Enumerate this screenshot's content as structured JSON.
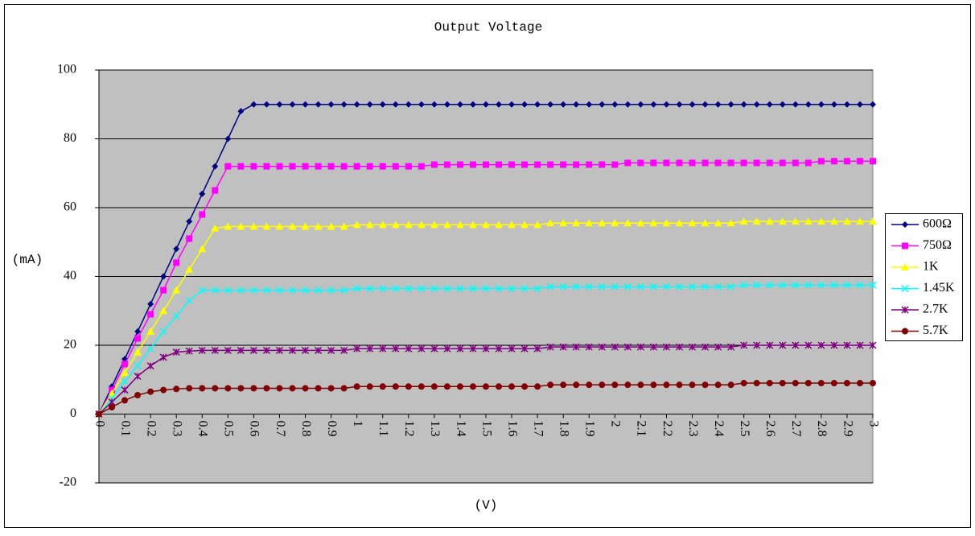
{
  "chart_data": {
    "type": "line",
    "title": "Output Voltage",
    "x_label": "(V)",
    "y_label": "(mA)",
    "xlim": [
      0,
      3
    ],
    "xticks": [
      0,
      0.1,
      0.2,
      0.3,
      0.4,
      0.5,
      0.6,
      0.7,
      0.8,
      0.9,
      1,
      1.1,
      1.2,
      1.3,
      1.4,
      1.5,
      1.6,
      1.7,
      1.8,
      1.9,
      2,
      2.1,
      2.2,
      2.3,
      2.4,
      2.5,
      2.6,
      2.7,
      2.8,
      2.9,
      3
    ],
    "ylim": [
      -20,
      100
    ],
    "yticks": [
      -20,
      0,
      20,
      40,
      60,
      80,
      100
    ],
    "grid": true,
    "legend": "right",
    "x": [
      0,
      0.05,
      0.1,
      0.15,
      0.2,
      0.25,
      0.3,
      0.35,
      0.4,
      0.45,
      0.5,
      0.55,
      0.6,
      0.65,
      0.7,
      0.75,
      0.8,
      0.85,
      0.9,
      0.95,
      1,
      1.05,
      1.1,
      1.15,
      1.2,
      1.25,
      1.3,
      1.35,
      1.4,
      1.45,
      1.5,
      1.55,
      1.6,
      1.65,
      1.7,
      1.75,
      1.8,
      1.85,
      1.9,
      1.95,
      2,
      2.05,
      2.1,
      2.15,
      2.2,
      2.25,
      2.3,
      2.35,
      2.4,
      2.45,
      2.5,
      2.55,
      2.6,
      2.65,
      2.7,
      2.75,
      2.8,
      2.85,
      2.9,
      2.95,
      3
    ],
    "series": [
      {
        "name": "600Ω",
        "color": "#000080",
        "marker": "diamond",
        "values": [
          0,
          8,
          16,
          24,
          32,
          40,
          48,
          56,
          64,
          72,
          80,
          88,
          90,
          90,
          90,
          90,
          90,
          90,
          90,
          90,
          90,
          90,
          90,
          90,
          90,
          90,
          90,
          90,
          90,
          90,
          90,
          90,
          90,
          90,
          90,
          90,
          90,
          90,
          90,
          90,
          90,
          90,
          90,
          90,
          90,
          90,
          90,
          90,
          90,
          90,
          90,
          90,
          90,
          90,
          90,
          90,
          90,
          90,
          90,
          90,
          90
        ]
      },
      {
        "name": "750Ω",
        "color": "#ff00ff",
        "marker": "square",
        "values": [
          0,
          7,
          14.5,
          22,
          29,
          36,
          44,
          51,
          58,
          65,
          72,
          72,
          72,
          72,
          72,
          72,
          72,
          72,
          72,
          72,
          72,
          72,
          72,
          72,
          72,
          72,
          72.5,
          72.5,
          72.5,
          72.5,
          72.5,
          72.5,
          72.5,
          72.5,
          72.5,
          72.5,
          72.5,
          72.5,
          72.5,
          72.5,
          72.5,
          73,
          73,
          73,
          73,
          73,
          73,
          73,
          73,
          73,
          73,
          73,
          73,
          73,
          73,
          73,
          73.5,
          73.5,
          73.5,
          73.5,
          73.5
        ]
      },
      {
        "name": "1K",
        "color": "#ffff00",
        "marker": "triangle",
        "values": [
          0,
          6,
          12,
          18,
          24,
          30,
          36,
          42,
          48,
          54,
          54.5,
          54.5,
          54.5,
          54.5,
          54.5,
          54.5,
          54.5,
          54.5,
          54.5,
          54.5,
          55,
          55,
          55,
          55,
          55,
          55,
          55,
          55,
          55,
          55,
          55,
          55,
          55,
          55,
          55,
          55.5,
          55.5,
          55.5,
          55.5,
          55.5,
          55.5,
          55.5,
          55.5,
          55.5,
          55.5,
          55.5,
          55.5,
          55.5,
          55.5,
          55.5,
          56,
          56,
          56,
          56,
          56,
          56,
          56,
          56,
          56,
          56,
          56
        ]
      },
      {
        "name": "1.45K",
        "color": "#00ffff",
        "marker": "x",
        "values": [
          0,
          4.5,
          9.5,
          14,
          19,
          24,
          28.5,
          33,
          36,
          36,
          36,
          36,
          36,
          36,
          36,
          36,
          36,
          36,
          36,
          36,
          36.5,
          36.5,
          36.5,
          36.5,
          36.5,
          36.5,
          36.5,
          36.5,
          36.5,
          36.5,
          36.5,
          36.5,
          36.5,
          36.5,
          36.5,
          37,
          37,
          37,
          37,
          37,
          37,
          37,
          37,
          37,
          37,
          37,
          37,
          37,
          37,
          37,
          37.5,
          37.5,
          37.5,
          37.5,
          37.5,
          37.5,
          37.5,
          37.5,
          37.5,
          37.5,
          37.5
        ]
      },
      {
        "name": "2.7K",
        "color": "#800080",
        "marker": "star",
        "values": [
          0,
          3.5,
          7,
          11,
          14,
          16.5,
          18,
          18.3,
          18.5,
          18.5,
          18.5,
          18.5,
          18.5,
          18.5,
          18.5,
          18.5,
          18.5,
          18.5,
          18.5,
          18.5,
          19,
          19,
          19,
          19,
          19,
          19,
          19,
          19,
          19,
          19,
          19,
          19,
          19,
          19,
          19,
          19.5,
          19.5,
          19.5,
          19.5,
          19.5,
          19.5,
          19.5,
          19.5,
          19.5,
          19.5,
          19.5,
          19.5,
          19.5,
          19.5,
          19.5,
          20,
          20,
          20,
          20,
          20,
          20,
          20,
          20,
          20,
          20,
          20
        ]
      },
      {
        "name": "5.7K",
        "color": "#800000",
        "marker": "circle",
        "values": [
          0,
          2,
          4,
          5.5,
          6.5,
          7,
          7.3,
          7.5,
          7.5,
          7.5,
          7.5,
          7.5,
          7.5,
          7.5,
          7.5,
          7.5,
          7.5,
          7.5,
          7.5,
          7.5,
          8,
          8,
          8,
          8,
          8,
          8,
          8,
          8,
          8,
          8,
          8,
          8,
          8,
          8,
          8,
          8.5,
          8.5,
          8.5,
          8.5,
          8.5,
          8.5,
          8.5,
          8.5,
          8.5,
          8.5,
          8.5,
          8.5,
          8.5,
          8.5,
          8.5,
          9,
          9,
          9,
          9,
          9,
          9,
          9,
          9,
          9,
          9,
          9
        ]
      }
    ]
  }
}
